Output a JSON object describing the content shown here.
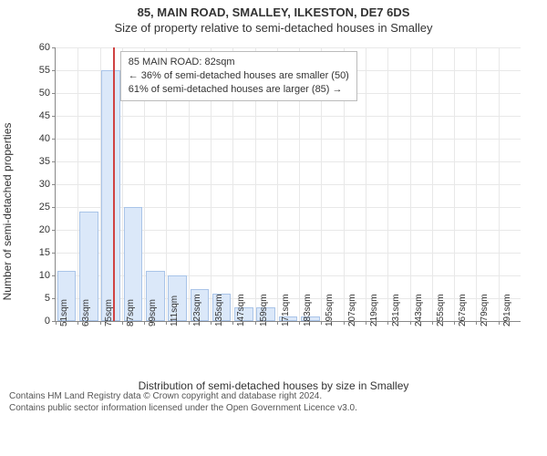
{
  "title_main": "85, MAIN ROAD, SMALLEY, ILKESTON, DE7 6DS",
  "title_sub": "Size of property relative to semi-detached houses in Smalley",
  "ylabel": "Number of semi-detached properties",
  "xlabel": "Distribution of semi-detached houses by size in Smalley",
  "footer_line1": "Contains HM Land Registry data © Crown copyright and database right 2024.",
  "footer_line2": "Contains public sector information licensed under the Open Government Licence v3.0.",
  "chart": {
    "type": "histogram",
    "background_color": "#ffffff",
    "grid_color": "#e8e8e8",
    "axis_color": "#888888",
    "bar_fill": "#dbe8f9",
    "bar_border": "#a9c4e8",
    "marker_color": "#d04242",
    "infobox_border": "#bbbbbb",
    "tick_fontsize": 11,
    "label_fontsize": 12,
    "ylim": [
      0,
      60
    ],
    "ytick_step": 5,
    "x_start": 51,
    "x_step": 12,
    "x_count": 21,
    "x_unit": "sqm",
    "values": [
      11,
      24,
      55,
      25,
      11,
      10,
      7,
      6,
      3,
      3,
      1,
      1,
      0,
      0,
      0,
      0,
      0,
      0,
      0,
      0,
      0
    ],
    "marker_x": 82,
    "infobox": {
      "line1": "85 MAIN ROAD: 82sqm",
      "line2": "← 36% of semi-detached houses are smaller (50)",
      "line3": "61% of semi-detached houses are larger (85) →"
    }
  }
}
